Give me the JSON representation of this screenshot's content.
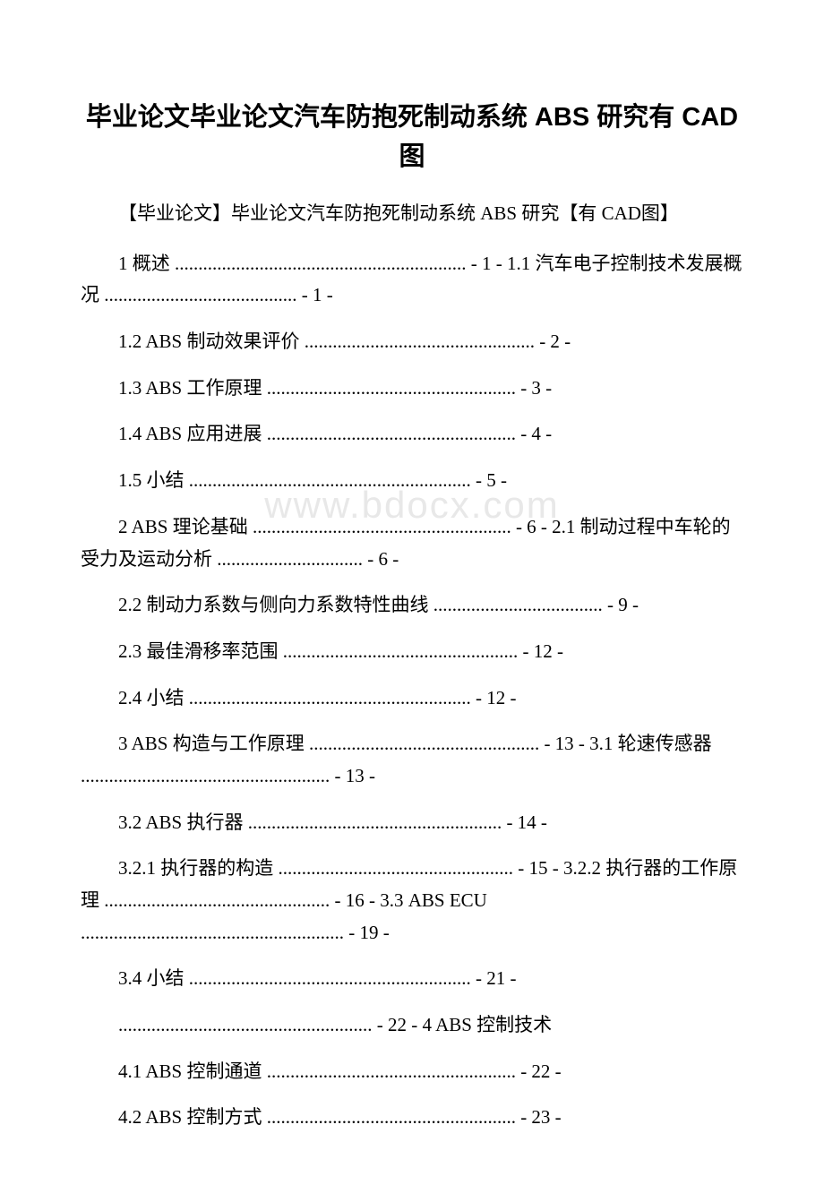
{
  "watermark": "www.bdocx.com",
  "title": "毕业论文毕业论文汽车防抱死制动系统 ABS 研究有 CAD 图",
  "subtitle": "【毕业论文】毕业论文汽车防抱死制动系统 ABS 研究【有 CAD图】",
  "toc": [
    "1 概述 .............................................................. - 1 - 1.1 汽车电子控制技术发展概况 ......................................... - 1 -",
    "1.2 ABS 制动效果评价 ................................................. - 2 -",
    "1.3 ABS 工作原理 ..................................................... - 3 -",
    "1.4 ABS 应用进展 ..................................................... - 4 -",
    "1.5 小结 ............................................................ - 5 -",
    "2 ABS 理论基础 ....................................................... - 6 - 2.1 制动过程中车轮的受力及运动分析 ............................... - 6 -",
    "2.2 制动力系数与侧向力系数特性曲线 .................................... - 9 -",
    "2.3 最佳滑移率范围 .................................................. - 12 -",
    "2.4 小结 ............................................................ - 12 -",
    "3 ABS 构造与工作原理 ................................................. - 13 - 3.1 轮速传感器 ..................................................... - 13 -",
    "3.2 ABS 执行器 ...................................................... - 14 -",
    "3.2.1 执行器的构造 .................................................. - 15 - 3.2.2 执行器的工作原理 ................................................ - 16 - 3.3 ABS ECU ........................................................ - 19 -",
    "3.4 小结 ............................................................ - 21 -",
    "...................................................... - 22 - 4 ABS 控制技术",
    "4.1 ABS 控制通道 ..................................................... - 22 -",
    "4.2 ABS 控制方式 ..................................................... - 23 -"
  ]
}
